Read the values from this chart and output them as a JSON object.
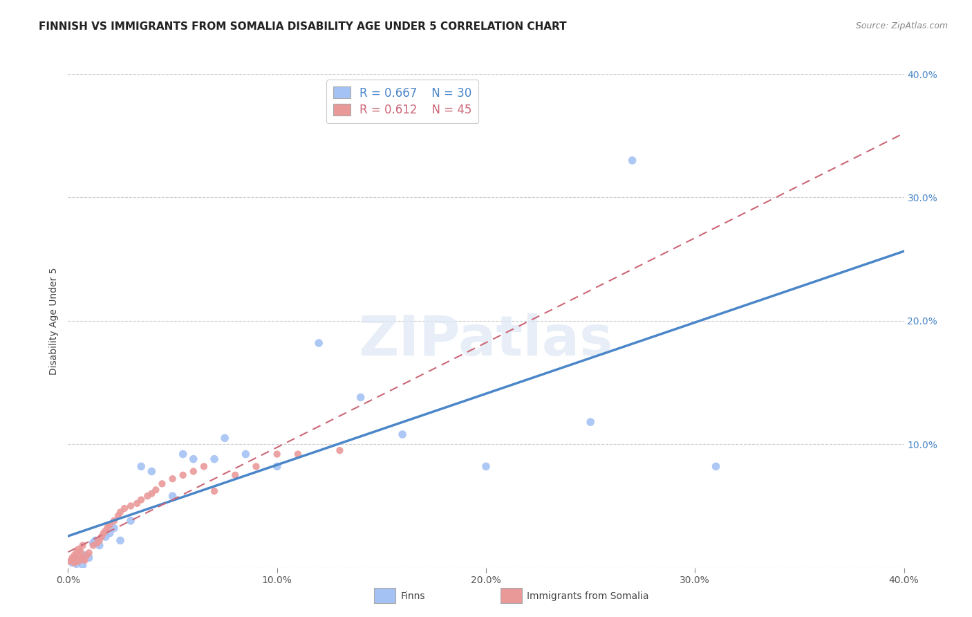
{
  "title": "FINNISH VS IMMIGRANTS FROM SOMALIA DISABILITY AGE UNDER 5 CORRELATION CHART",
  "source": "Source: ZipAtlas.com",
  "ylabel": "Disability Age Under 5",
  "xlim": [
    0.0,
    0.4
  ],
  "ylim": [
    0.0,
    0.4
  ],
  "legend_r1": "0.667",
  "legend_n1": "30",
  "legend_r2": "0.612",
  "legend_n2": "45",
  "blue_color": "#a4c2f4",
  "pink_color": "#ea9999",
  "line_blue": "#4a86c8",
  "line_pink": "#cc6677",
  "finns_x": [
    0.002,
    0.004,
    0.005,
    0.007,
    0.008,
    0.01,
    0.012,
    0.013,
    0.015,
    0.018,
    0.02,
    0.022,
    0.025,
    0.03,
    0.035,
    0.04,
    0.05,
    0.055,
    0.06,
    0.07,
    0.075,
    0.085,
    0.1,
    0.12,
    0.14,
    0.16,
    0.2,
    0.25,
    0.27,
    0.31
  ],
  "finns_y": [
    0.004,
    0.003,
    0.006,
    0.002,
    0.01,
    0.008,
    0.02,
    0.022,
    0.018,
    0.025,
    0.028,
    0.032,
    0.022,
    0.038,
    0.082,
    0.078,
    0.058,
    0.092,
    0.088,
    0.088,
    0.105,
    0.092,
    0.082,
    0.182,
    0.138,
    0.108,
    0.082,
    0.118,
    0.33,
    0.082
  ],
  "somalia_x": [
    0.001,
    0.002,
    0.002,
    0.003,
    0.003,
    0.004,
    0.004,
    0.005,
    0.005,
    0.006,
    0.006,
    0.007,
    0.007,
    0.008,
    0.009,
    0.01,
    0.012,
    0.014,
    0.015,
    0.016,
    0.017,
    0.018,
    0.019,
    0.02,
    0.022,
    0.024,
    0.025,
    0.027,
    0.03,
    0.033,
    0.035,
    0.038,
    0.04,
    0.042,
    0.045,
    0.05,
    0.055,
    0.06,
    0.065,
    0.07,
    0.08,
    0.09,
    0.1,
    0.11,
    0.13
  ],
  "somalia_y": [
    0.005,
    0.006,
    0.008,
    0.004,
    0.01,
    0.007,
    0.012,
    0.005,
    0.015,
    0.009,
    0.013,
    0.007,
    0.018,
    0.006,
    0.01,
    0.012,
    0.018,
    0.02,
    0.022,
    0.025,
    0.028,
    0.03,
    0.033,
    0.035,
    0.038,
    0.042,
    0.045,
    0.048,
    0.05,
    0.052,
    0.055,
    0.058,
    0.06,
    0.063,
    0.068,
    0.072,
    0.075,
    0.078,
    0.082,
    0.062,
    0.075,
    0.082,
    0.092,
    0.092,
    0.095
  ],
  "title_fontsize": 11,
  "axis_label_fontsize": 10,
  "tick_fontsize": 10,
  "background_color": "#ffffff",
  "grid_color": "#cccccc"
}
